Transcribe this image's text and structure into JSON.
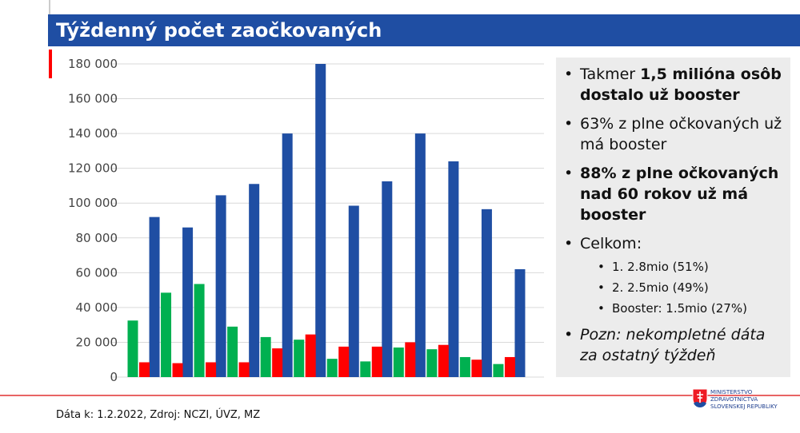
{
  "header": {
    "title": "Týždenný počet zaočkovaných"
  },
  "chart_data": {
    "type": "bar",
    "categories": [
      null,
      null,
      null,
      null,
      null,
      null,
      null,
      null,
      null,
      null,
      null,
      null,
      null
    ],
    "series": [
      {
        "color": "#1f4ea3",
        "values": [
          null,
          92000,
          86000,
          104500,
          111000,
          140000,
          180000,
          98500,
          112500,
          140000,
          124000,
          96500,
          62000
        ]
      },
      {
        "color": "#00b050",
        "values": [
          32500,
          48500,
          53500,
          29000,
          23000,
          21500,
          10500,
          9000,
          17000,
          16000,
          11500,
          7500,
          null
        ]
      },
      {
        "color": "#ff0000",
        "values": [
          8500,
          8000,
          8500,
          8500,
          16500,
          24500,
          17500,
          17500,
          20000,
          18500,
          10000,
          11500,
          null
        ]
      }
    ],
    "ylim": [
      0,
      180000
    ],
    "yticks": [
      0,
      {
        "value": 20000,
        "label": "20 000"
      },
      {
        "value": 40000,
        "label": "40 000"
      },
      {
        "value": 60000,
        "label": "60 000"
      },
      {
        "value": 80000,
        "label": "80 000"
      },
      {
        "value": 100000,
        "label": "100 000"
      },
      {
        "value": 120000,
        "label": "120 000"
      },
      {
        "value": 140000,
        "label": "140 000"
      },
      {
        "value": 160000,
        "label": "160 000"
      },
      {
        "value": 180000,
        "label": "180 000"
      }
    ],
    "grid": true
  },
  "panel": {
    "items": [
      {
        "runs": [
          {
            "text": "Takmer "
          },
          {
            "text": "1,5 milióna osôb dostalo už booster",
            "bold": true
          }
        ]
      },
      {
        "runs": [
          {
            "text": "63% z plne očkovaných už má booster"
          }
        ]
      },
      {
        "runs": [
          {
            "text": "88% z plne očkovaných nad 60 rokov už má booster",
            "bold": true
          }
        ]
      },
      {
        "runs": [
          {
            "text": "Celkom:"
          }
        ],
        "sub": [
          "1. 2.8mio (51%)",
          "2. 2.5mio (49%)",
          "Booster: 1.5mio (27%)"
        ]
      },
      {
        "runs": [
          {
            "text": "Pozn: nekompletné dáta za ostatný týždeň",
            "italic": true
          }
        ]
      }
    ]
  },
  "footer": {
    "source": "Dáta k: 1.2.2022, Zdroj: NCZI, ÚVZ, MZ"
  },
  "logo": {
    "lines": [
      "MINISTERSTVO",
      "ZDRAVOTNÍCTVA",
      "SLOVENSKEJ REPUBLIKY"
    ]
  }
}
